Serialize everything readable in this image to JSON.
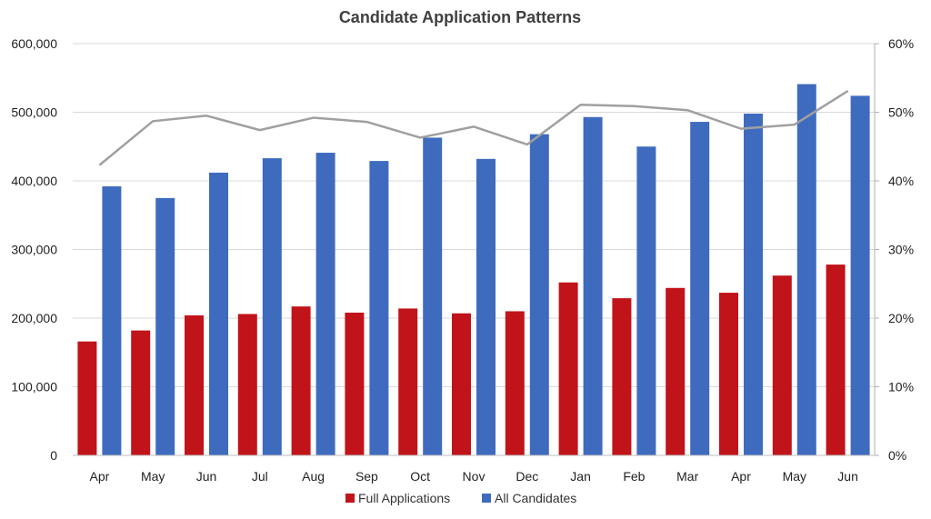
{
  "chart_data": {
    "type": "bar",
    "title": "Candidate Application Patterns",
    "categories": [
      "Apr",
      "May",
      "Jun",
      "Jul",
      "Aug",
      "Sep",
      "Oct",
      "Nov",
      "Dec",
      "Jan",
      "Feb",
      "Mar",
      "Apr",
      "May",
      "Jun"
    ],
    "series": [
      {
        "name": "Full Applications",
        "type": "bar",
        "axis": "left",
        "color": "#c0141a",
        "values": [
          166000,
          182000,
          204000,
          206000,
          217000,
          208000,
          214000,
          207000,
          210000,
          252000,
          229000,
          244000,
          237000,
          262000,
          278000
        ]
      },
      {
        "name": "All Candidates",
        "type": "bar",
        "axis": "left",
        "color": "#3f6bbf",
        "values": [
          392000,
          375000,
          412000,
          433000,
          441000,
          429000,
          463000,
          432000,
          468000,
          493000,
          450000,
          486000,
          498000,
          541000,
          524000
        ]
      },
      {
        "type": "line",
        "axis": "right",
        "color": "#a0a0a0",
        "values": [
          0.423,
          0.487,
          0.495,
          0.474,
          0.492,
          0.486,
          0.463,
          0.479,
          0.453,
          0.511,
          0.509,
          0.503,
          0.476,
          0.482,
          0.531
        ]
      }
    ],
    "y_left": {
      "ylim": [
        0,
        600000
      ],
      "tick_labels": [
        "0",
        "100,000",
        "200,000",
        "300,000",
        "400,000",
        "500,000",
        "600,000"
      ]
    },
    "y_right": {
      "ylim": [
        0,
        0.6
      ],
      "tick_labels": [
        "0%",
        "10%",
        "20%",
        "30%",
        "40%",
        "50%",
        "60%"
      ]
    },
    "grid": true,
    "legend": {
      "position": "bottom",
      "entries": [
        "Full Applications",
        "All Candidates"
      ]
    }
  }
}
